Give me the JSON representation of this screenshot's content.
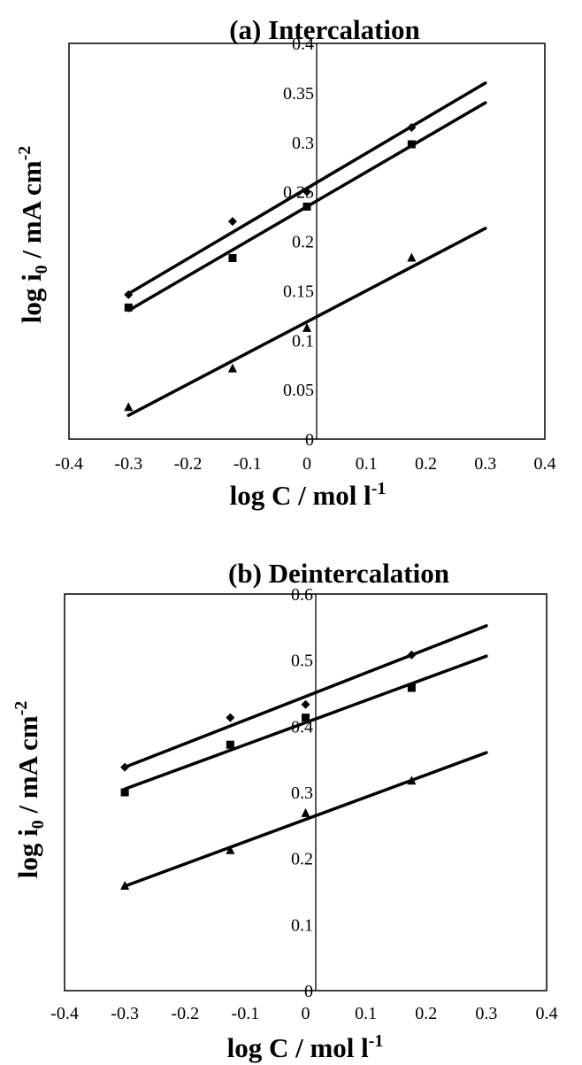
{
  "chart_data": [
    {
      "type": "scatter",
      "title": "(a) Intercalation",
      "xlabel": "log C / mol l",
      "xlabel_sup": "-1",
      "ylabel": "log i",
      "ylabel_sub": "0",
      "ylabel_rest": " / mA cm",
      "ylabel_sup": "-2",
      "xlim": [
        -0.4,
        0.4
      ],
      "ylim": [
        0,
        0.4
      ],
      "x_ticks": [
        "-0.4",
        "-0.3",
        "-0.2",
        "-0.1",
        "0",
        "0.1",
        "0.2",
        "0.3",
        "0.4"
      ],
      "y_ticks": [
        "0",
        "0.05",
        "0.1",
        "0.15",
        "0.2",
        "0.25",
        "0.3",
        "0.35",
        "0.4"
      ],
      "grid": false,
      "series": [
        {
          "marker": "diamond",
          "x": [
            -0.3,
            -0.125,
            0,
            0.176
          ],
          "y": [
            0.146,
            0.22,
            0.25,
            0.315
          ],
          "fit": [
            [
              -0.3,
              0.147
            ],
            [
              0.3,
              0.36
            ]
          ]
        },
        {
          "marker": "square",
          "x": [
            -0.3,
            -0.125,
            0,
            0.176
          ],
          "y": [
            0.133,
            0.183,
            0.235,
            0.298
          ],
          "fit": [
            [
              -0.3,
              0.13
            ],
            [
              0.3,
              0.34
            ]
          ]
        },
        {
          "marker": "triangle",
          "x": [
            -0.3,
            -0.125,
            0,
            0.176
          ],
          "y": [
            0.032,
            0.071,
            0.112,
            0.183
          ],
          "fit": [
            [
              -0.3,
              0.024
            ],
            [
              0.3,
              0.213
            ]
          ]
        }
      ]
    },
    {
      "type": "scatter",
      "title": "(b) Deintercalation",
      "xlabel": "log C / mol l",
      "xlabel_sup": "-1",
      "ylabel": "log i",
      "ylabel_sub": "0",
      "ylabel_rest": " / mA cm",
      "ylabel_sup": "-2",
      "xlim": [
        -0.4,
        0.4
      ],
      "ylim": [
        0,
        0.6
      ],
      "x_ticks": [
        "-0.4",
        "-0.3",
        "-0.2",
        "-0.1",
        "0",
        "0.1",
        "0.2",
        "0.3",
        "0.4"
      ],
      "y_ticks": [
        "0",
        "0.1",
        "0.2",
        "0.3",
        "0.4",
        "0.5",
        "0.6"
      ],
      "grid": false,
      "series": [
        {
          "marker": "diamond",
          "x": [
            -0.3,
            -0.125,
            0,
            0.176
          ],
          "y": [
            0.338,
            0.413,
            0.433,
            0.508
          ],
          "fit": [
            [
              -0.3,
              0.338
            ],
            [
              0.3,
              0.552
            ]
          ]
        },
        {
          "marker": "square",
          "x": [
            -0.3,
            -0.125,
            0,
            0.176
          ],
          "y": [
            0.3,
            0.372,
            0.413,
            0.458
          ],
          "fit": [
            [
              -0.3,
              0.305
            ],
            [
              0.3,
              0.506
            ]
          ]
        },
        {
          "marker": "triangle",
          "x": [
            -0.3,
            -0.125,
            0,
            0.176
          ],
          "y": [
            0.158,
            0.212,
            0.268,
            0.317
          ],
          "fit": [
            [
              -0.3,
              0.158
            ],
            [
              0.3,
              0.36
            ]
          ]
        }
      ]
    }
  ]
}
